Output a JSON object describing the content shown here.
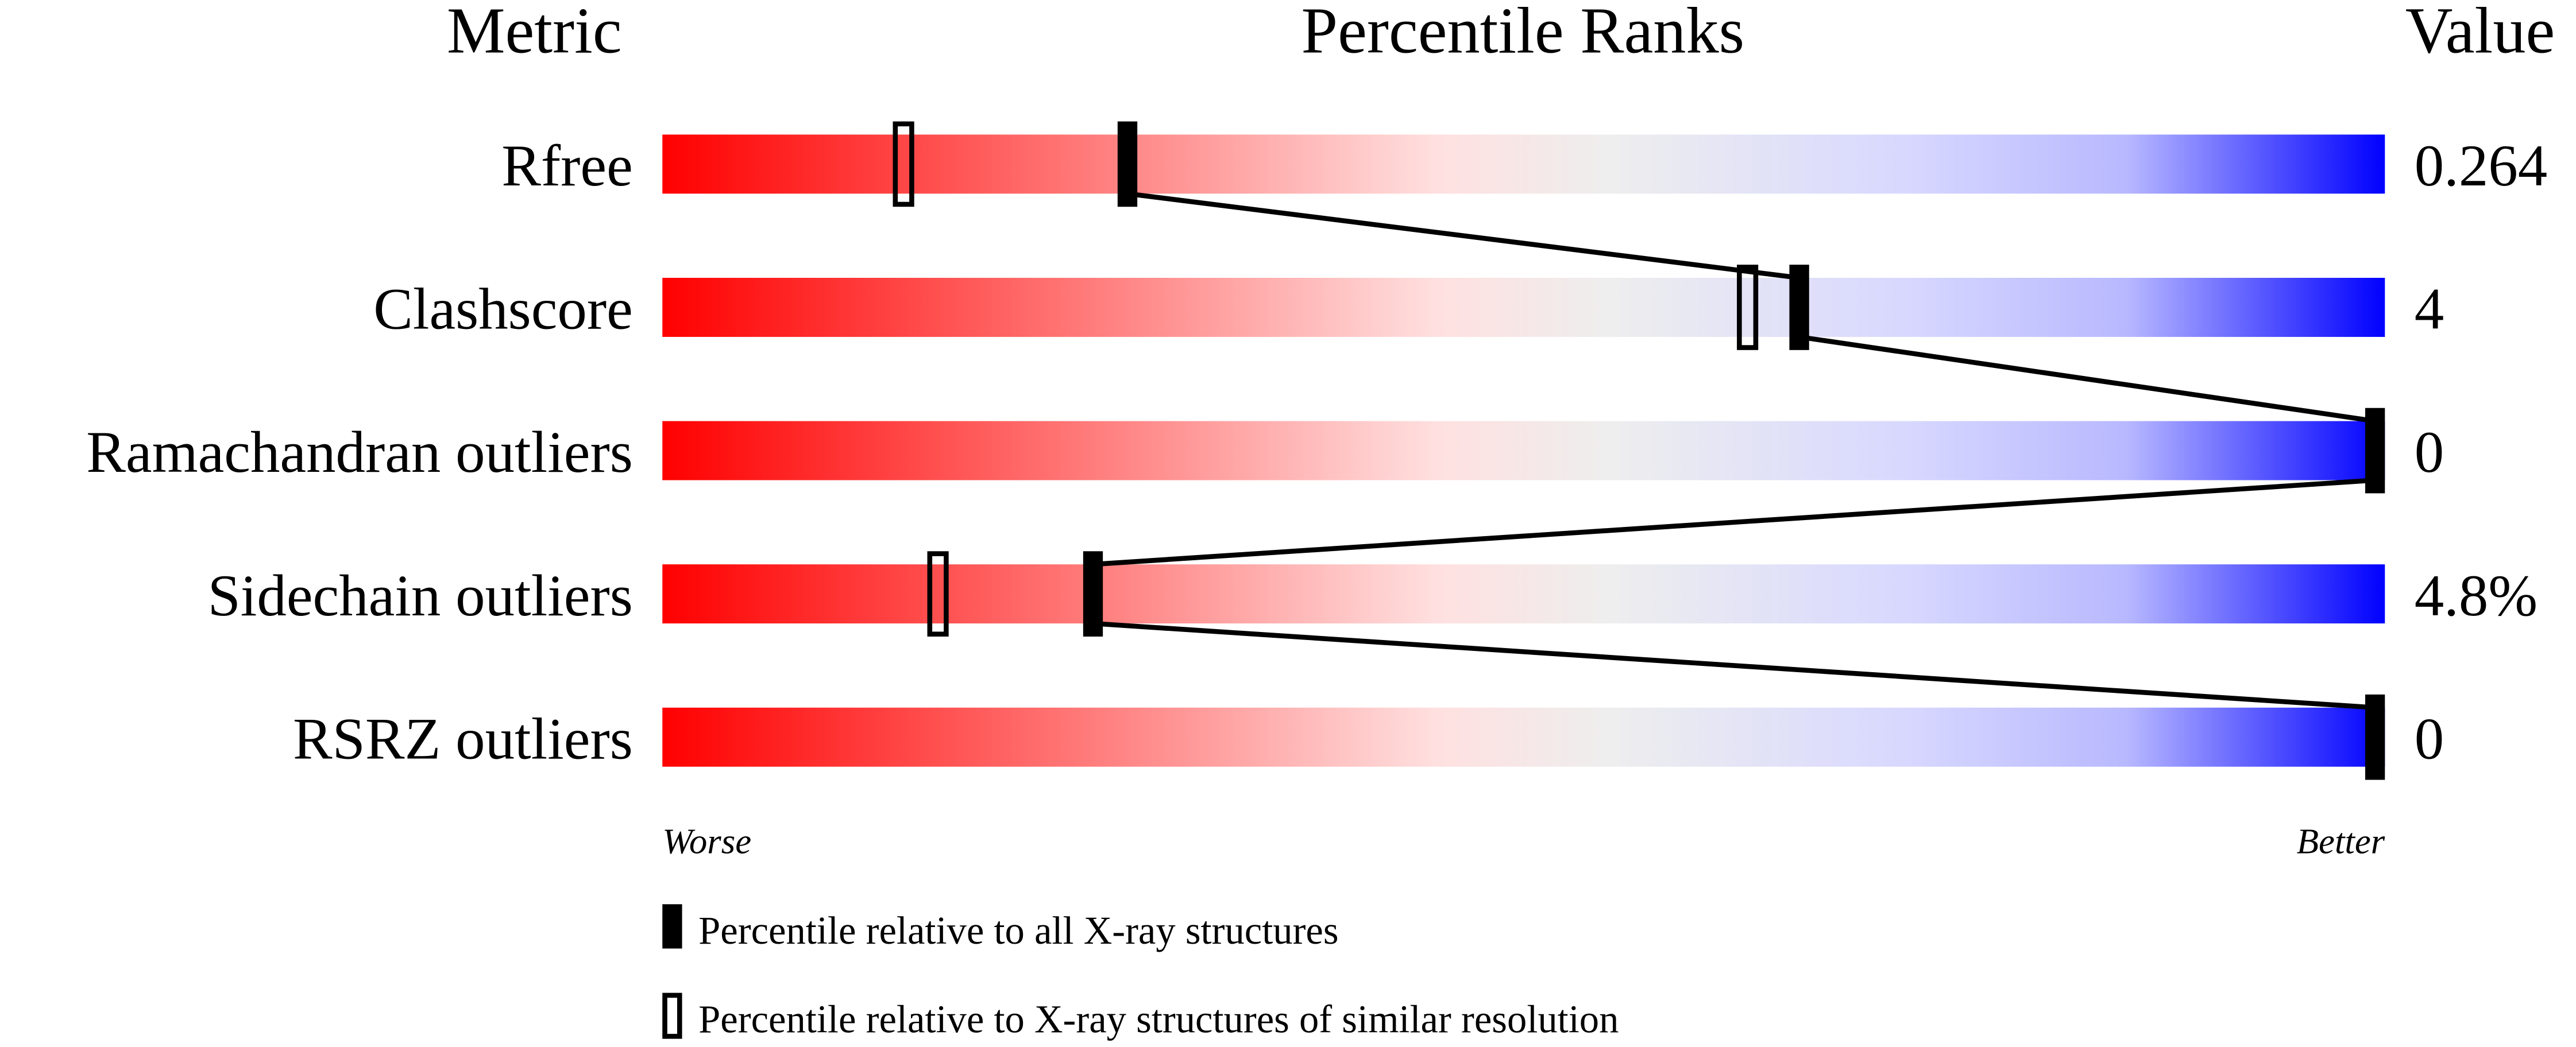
{
  "chart_data": {
    "type": "percentile-slider",
    "headers": {
      "metric": "Metric",
      "ranks": "Percentile Ranks",
      "value": "Value"
    },
    "xlim": [
      0,
      100
    ],
    "axis_labels": {
      "left": "Worse",
      "right": "Better"
    },
    "metrics": [
      {
        "name": "Rfree",
        "value": "0.264",
        "percentile_all": 27,
        "percentile_similar": 14
      },
      {
        "name": "Clashscore",
        "value": "4",
        "percentile_all": 66,
        "percentile_similar": 63
      },
      {
        "name": "Ramachandran outliers",
        "value": "0",
        "percentile_all": 100,
        "percentile_similar": null
      },
      {
        "name": "Sidechain outliers",
        "value": "4.8%",
        "percentile_all": 25,
        "percentile_similar": 16
      },
      {
        "name": "RSRZ outliers",
        "value": "0",
        "percentile_all": 100,
        "percentile_similar": null
      }
    ],
    "legend": [
      {
        "marker": "filled",
        "label": "Percentile relative to all X-ray structures"
      },
      {
        "marker": "open",
        "label": "Percentile relative to X-ray structures of similar resolution"
      }
    ],
    "colors": {
      "worse": "#ff0000",
      "middle": "#eeeeee",
      "better": "#0000ff",
      "marker": "#000000"
    }
  }
}
